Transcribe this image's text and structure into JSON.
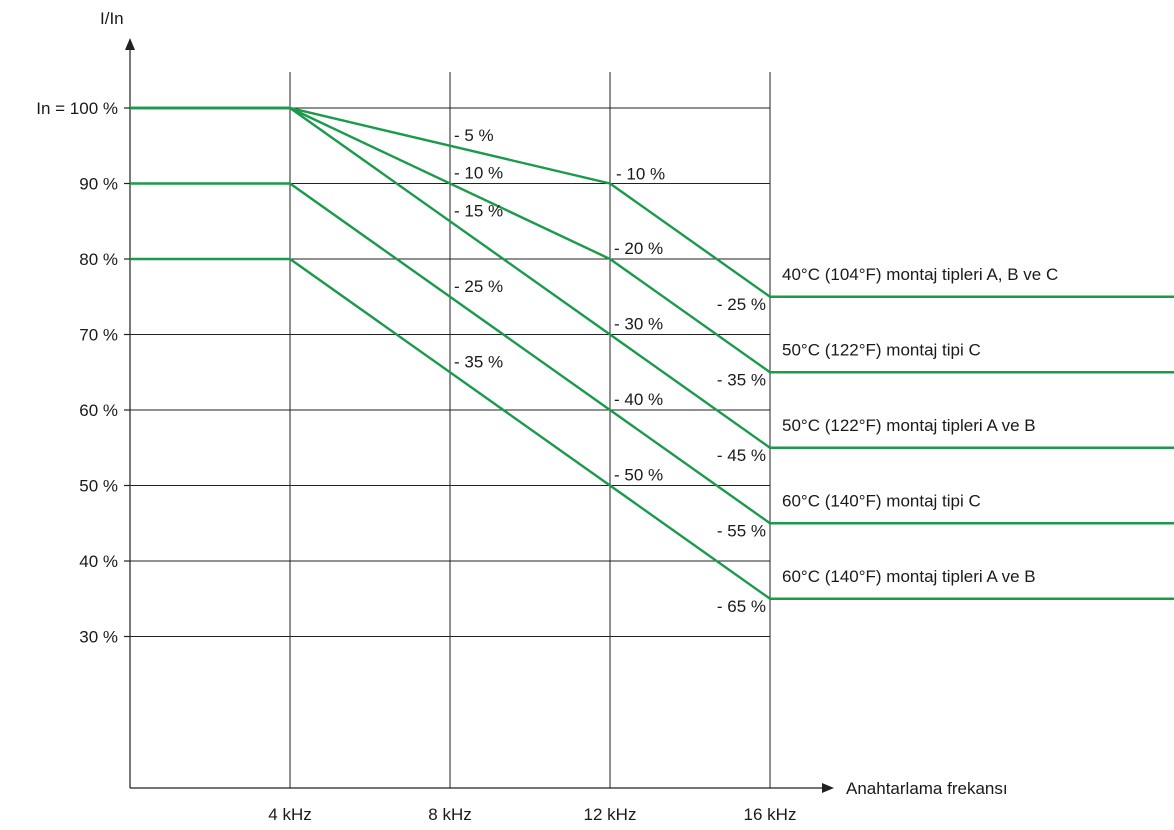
{
  "chart_data": {
    "type": "line",
    "xlabel": "Anahtarlama frekansı",
    "ylabel": "I/In",
    "x_ticks": [
      {
        "value": 4,
        "label": "4 kHz"
      },
      {
        "value": 8,
        "label": "8 kHz"
      },
      {
        "value": 12,
        "label": "12 kHz"
      },
      {
        "value": 16,
        "label": "16 kHz"
      }
    ],
    "y_ticks": [
      {
        "value": 100,
        "label": "In = 100 %"
      },
      {
        "value": 90,
        "label": "90 %"
      },
      {
        "value": 80,
        "label": "80 %"
      },
      {
        "value": 70,
        "label": "70 %"
      },
      {
        "value": 60,
        "label": "60 %"
      },
      {
        "value": 50,
        "label": "50 %"
      },
      {
        "value": 40,
        "label": "40 %"
      },
      {
        "value": 30,
        "label": "30 %"
      }
    ],
    "xlim": [
      0,
      16
    ],
    "ylim": [
      10,
      100
    ],
    "grid": true,
    "series": [
      {
        "name": "40°C (104°F) montaj tipleri A, B ve C",
        "points": [
          [
            0,
            100
          ],
          [
            4,
            100
          ],
          [
            12,
            90
          ],
          [
            16,
            75
          ]
        ]
      },
      {
        "name": "50°C (122°F) montaj tipi C",
        "points": [
          [
            0,
            100
          ],
          [
            4,
            100
          ],
          [
            12,
            80
          ],
          [
            16,
            65
          ]
        ]
      },
      {
        "name": "50°C (122°F) montaj tipleri A ve B",
        "points": [
          [
            0,
            100
          ],
          [
            4,
            100
          ],
          [
            12,
            70
          ],
          [
            16,
            55
          ]
        ]
      },
      {
        "name": "60°C (140°F) montaj tipi C",
        "points": [
          [
            0,
            90
          ],
          [
            4,
            90
          ],
          [
            12,
            60
          ],
          [
            16,
            45
          ]
        ]
      },
      {
        "name": "60°C (140°F) montaj tipleri A ve B",
        "points": [
          [
            0,
            80
          ],
          [
            4,
            80
          ],
          [
            12,
            50
          ],
          [
            16,
            35
          ]
        ]
      }
    ],
    "annotations": [
      {
        "text": "- 5 %",
        "x": 8,
        "y": 95
      },
      {
        "text": "- 10 %",
        "x": 8,
        "y": 90
      },
      {
        "text": "- 15 %",
        "x": 8,
        "y": 85
      },
      {
        "text": "- 25 %",
        "x": 8,
        "y": 75
      },
      {
        "text": "- 35 %",
        "x": 8,
        "y": 65
      },
      {
        "text": "- 10 %",
        "x": 12,
        "y": 90
      },
      {
        "text": "- 20 %",
        "x": 12,
        "y": 80
      },
      {
        "text": "- 30 %",
        "x": 12,
        "y": 70
      },
      {
        "text": "- 40 %",
        "x": 12,
        "y": 60
      },
      {
        "text": "- 50 %",
        "x": 12,
        "y": 50
      },
      {
        "text": "- 25 %",
        "x": 16,
        "y": 75
      },
      {
        "text": "- 35 %",
        "x": 16,
        "y": 65
      },
      {
        "text": "- 45 %",
        "x": 16,
        "y": 55
      },
      {
        "text": "- 55 %",
        "x": 16,
        "y": 45
      },
      {
        "text": "- 65 %",
        "x": 16,
        "y": 35
      }
    ],
    "colors": {
      "series": "#1a9a4a",
      "grid": "#222222",
      "text": "#1a1a1a"
    }
  }
}
